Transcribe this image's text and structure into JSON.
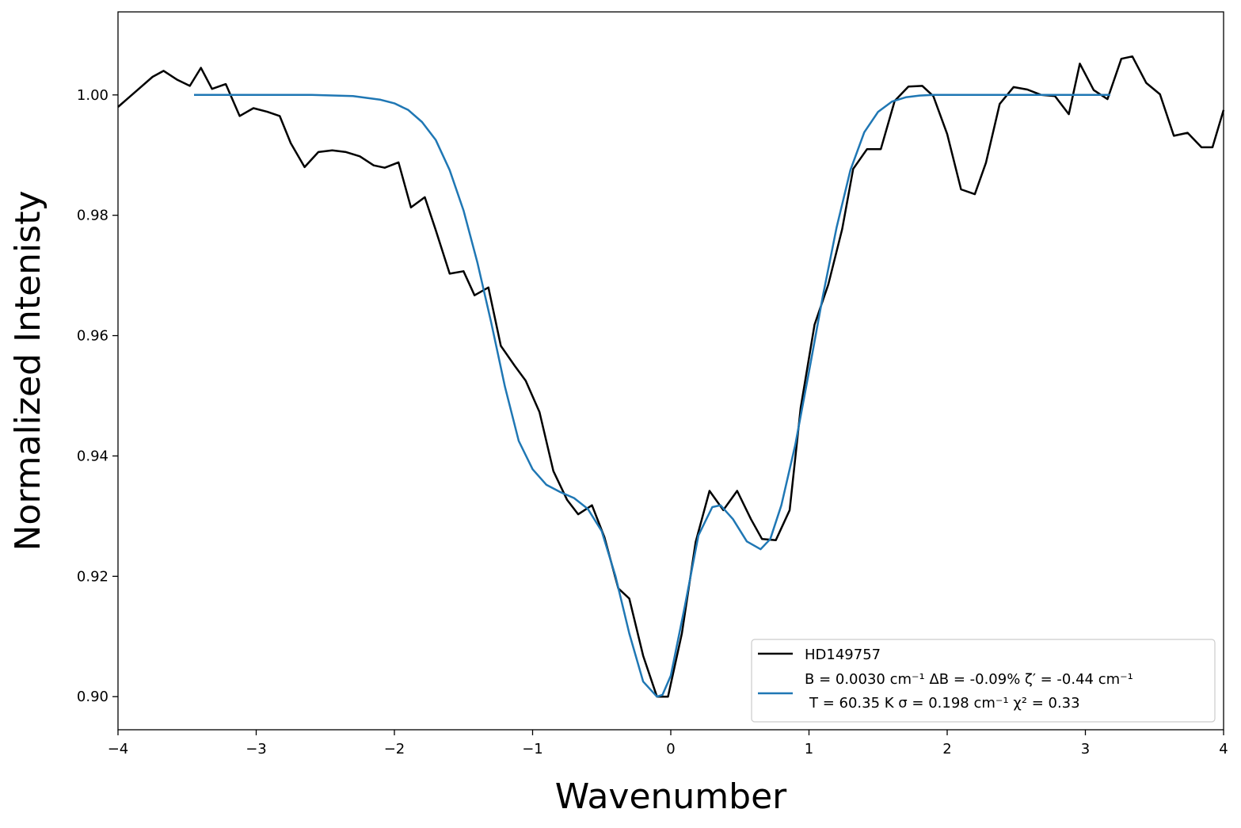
{
  "chart_data": {
    "type": "line",
    "xlabel": "Wavenumber",
    "ylabel": "Normalized Intenisty",
    "xlim": [
      -4,
      4
    ],
    "ylim": [
      0.8945,
      1.0138
    ],
    "xticks": [
      {
        "value": -4,
        "label": "−4"
      },
      {
        "value": -3,
        "label": "−3"
      },
      {
        "value": -2,
        "label": "−2"
      },
      {
        "value": -1,
        "label": "−1"
      },
      {
        "value": 0,
        "label": "0"
      },
      {
        "value": 1,
        "label": "1"
      },
      {
        "value": 2,
        "label": "2"
      },
      {
        "value": 3,
        "label": "3"
      },
      {
        "value": 4,
        "label": "4"
      }
    ],
    "yticks": [
      {
        "value": 0.9,
        "label": "0.90"
      },
      {
        "value": 0.92,
        "label": "0.92"
      },
      {
        "value": 0.94,
        "label": "0.94"
      },
      {
        "value": 0.96,
        "label": "0.96"
      },
      {
        "value": 0.98,
        "label": "0.98"
      },
      {
        "value": 1.0,
        "label": "1.00"
      }
    ],
    "grid": false,
    "legend_position": "lower right",
    "series": [
      {
        "name": "HD149757",
        "color": "#000000",
        "x": [
          -4.0,
          -3.95,
          -3.85,
          -3.75,
          -3.67,
          -3.57,
          -3.48,
          -3.4,
          -3.32,
          -3.22,
          -3.12,
          -3.02,
          -2.92,
          -2.83,
          -2.75,
          -2.65,
          -2.55,
          -2.45,
          -2.35,
          -2.25,
          -2.15,
          -2.07,
          -1.97,
          -1.88,
          -1.78,
          -1.7,
          -1.6,
          -1.5,
          -1.42,
          -1.32,
          -1.23,
          -1.13,
          -1.05,
          -0.95,
          -0.85,
          -0.75,
          -0.67,
          -0.57,
          -0.48,
          -0.38,
          -0.3,
          -0.2,
          -0.1,
          -0.02,
          0.08,
          0.18,
          0.28,
          0.38,
          0.48,
          0.58,
          0.66,
          0.76,
          0.86,
          0.94,
          1.04,
          1.14,
          1.24,
          1.32,
          1.42,
          1.52,
          1.62,
          1.72,
          1.82,
          1.9,
          2.0,
          2.1,
          2.2,
          2.28,
          2.38,
          2.48,
          2.58,
          2.68,
          2.78,
          2.88,
          2.96,
          3.06,
          3.16,
          3.26,
          3.34,
          3.44,
          3.54,
          3.64,
          3.74,
          3.84,
          3.92,
          4.0
        ],
        "y": [
          0.998,
          0.999,
          1.001,
          1.003,
          1.004,
          1.0025,
          1.0015,
          1.0045,
          1.001,
          1.0018,
          0.9965,
          0.9978,
          0.9972,
          0.9965,
          0.992,
          0.988,
          0.9905,
          0.9908,
          0.9905,
          0.9898,
          0.9883,
          0.9879,
          0.9888,
          0.9813,
          0.983,
          0.9775,
          0.9703,
          0.9707,
          0.9667,
          0.968,
          0.9583,
          0.955,
          0.9525,
          0.9473,
          0.9375,
          0.9327,
          0.9303,
          0.9318,
          0.9265,
          0.918,
          0.9163,
          0.9068,
          0.9,
          0.9,
          0.9105,
          0.9257,
          0.9342,
          0.931,
          0.9342,
          0.9295,
          0.9262,
          0.926,
          0.931,
          0.948,
          0.9618,
          0.9685,
          0.9777,
          0.9877,
          0.991,
          0.991,
          0.999,
          1.0014,
          1.0015,
          0.9998,
          0.9935,
          0.9843,
          0.9835,
          0.9887,
          0.9985,
          1.0013,
          1.0009,
          1.0,
          0.9998,
          0.9968,
          1.0052,
          1.0008,
          0.9993,
          1.006,
          1.0064,
          1.002,
          1.0001,
          0.9932,
          0.9937,
          0.9913,
          0.9913,
          0.9975
        ]
      },
      {
        "name": "B = 0.0030 cm⁻¹  ΔB =  -0.09%  ζ′ = -0.44 cm⁻¹  T = 60.35 K σ =  0.198 cm⁻¹ χ² = 0.33",
        "color": "#1f77b4",
        "x": [
          -3.45,
          -3.0,
          -2.6,
          -2.3,
          -2.1,
          -2.0,
          -1.9,
          -1.8,
          -1.7,
          -1.6,
          -1.5,
          -1.4,
          -1.3,
          -1.2,
          -1.1,
          -1.0,
          -0.9,
          -0.8,
          -0.7,
          -0.6,
          -0.5,
          -0.4,
          -0.3,
          -0.2,
          -0.1,
          -0.06,
          0.0,
          0.1,
          0.2,
          0.3,
          0.36,
          0.45,
          0.55,
          0.65,
          0.72,
          0.8,
          0.9,
          1.0,
          1.1,
          1.2,
          1.3,
          1.4,
          1.5,
          1.6,
          1.7,
          1.8,
          1.9,
          2.1,
          2.5,
          3.0,
          3.18
        ],
        "y": [
          1.0,
          1.0,
          1.0,
          0.9998,
          0.9992,
          0.9986,
          0.9975,
          0.9955,
          0.9925,
          0.9875,
          0.9808,
          0.9722,
          0.9622,
          0.9515,
          0.9425,
          0.9378,
          0.9352,
          0.934,
          0.933,
          0.9312,
          0.9275,
          0.92,
          0.9105,
          0.9025,
          0.9,
          0.9003,
          0.9035,
          0.9148,
          0.9268,
          0.9315,
          0.9318,
          0.9295,
          0.9258,
          0.9245,
          0.9262,
          0.9318,
          0.9418,
          0.954,
          0.9665,
          0.978,
          0.9875,
          0.9938,
          0.9972,
          0.9989,
          0.9996,
          0.9999,
          1.0,
          1.0,
          1.0,
          1.0,
          1.0
        ]
      }
    ],
    "legend": {
      "entry1": "HD149757",
      "entry2_line1": "B = 0.0030 cm⁻¹  ΔB =  -0.09%  ζ′ = -0.44 cm⁻¹",
      "entry2_line2": "T = 60.35 K σ =  0.198 cm⁻¹ χ² = 0.33"
    }
  }
}
